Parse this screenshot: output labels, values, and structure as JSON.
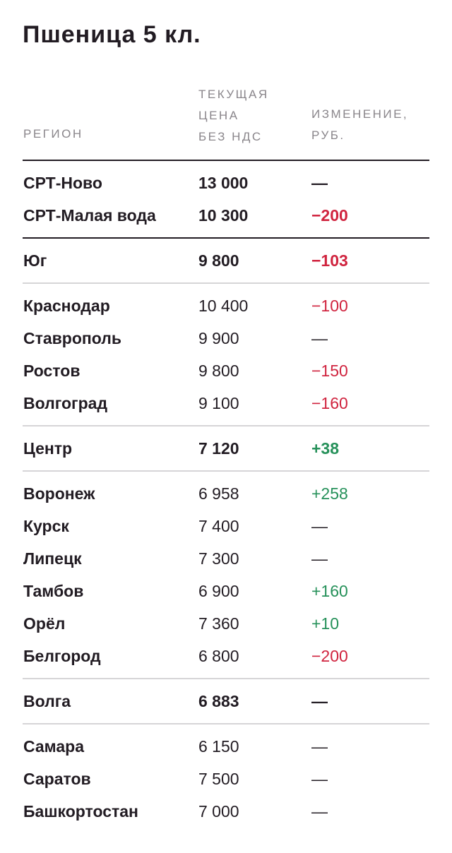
{
  "title": "Пшеница 5 кл.",
  "headers": {
    "region": "Регион",
    "price": "Текущая\nцена\nбез НДС",
    "change": "Изменение,\nруб."
  },
  "colors": {
    "negative": "#d0243f",
    "positive": "#26915a",
    "text": "#221c23",
    "muted": "#8a868b"
  },
  "rows": [
    {
      "region": "СРТ-Ново",
      "price": "13 000",
      "change": "—",
      "bold": true
    },
    {
      "region": "СРТ-Малая вода",
      "price": "10 300",
      "change": "−200",
      "bold": true
    },
    {
      "region": "Юг",
      "price": "9 800",
      "change": "−103",
      "bold": true
    },
    {
      "region": "Краснодар",
      "price": "10 400",
      "change": "−100",
      "bold": false
    },
    {
      "region": "Ставрополь",
      "price": "9 900",
      "change": "—",
      "bold": false
    },
    {
      "region": "Ростов",
      "price": "9 800",
      "change": "−150",
      "bold": false
    },
    {
      "region": "Волгоград",
      "price": "9 100",
      "change": "−160",
      "bold": false
    },
    {
      "region": "Центр",
      "price": "7 120",
      "change": "+38",
      "bold": true
    },
    {
      "region": "Воронеж",
      "price": "6 958",
      "change": "+258",
      "bold": false
    },
    {
      "region": "Курск",
      "price": "7 400",
      "change": "—",
      "bold": false
    },
    {
      "region": "Липецк",
      "price": "7 300",
      "change": "—",
      "bold": false
    },
    {
      "region": "Тамбов",
      "price": "6 900",
      "change": "+160",
      "bold": false
    },
    {
      "region": "Орёл",
      "price": "7 360",
      "change": "+10",
      "bold": false
    },
    {
      "region": "Белгород",
      "price": "6 800",
      "change": "−200",
      "bold": false
    },
    {
      "region": "Волга",
      "price": "6 883",
      "change": "—",
      "bold": true
    },
    {
      "region": "Самара",
      "price": "6 150",
      "change": "—",
      "bold": false
    },
    {
      "region": "Саратов",
      "price": "7 500",
      "change": "—",
      "bold": false
    },
    {
      "region": "Башкортостан",
      "price": "7 000",
      "change": "—",
      "bold": false
    }
  ]
}
